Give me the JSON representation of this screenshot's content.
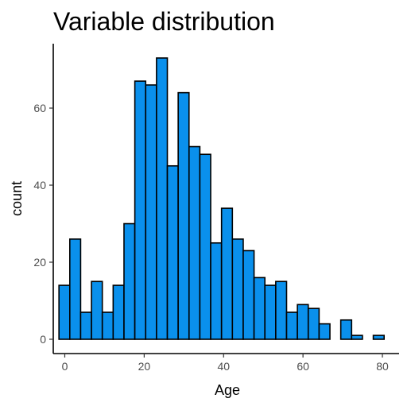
{
  "chart_data": {
    "type": "bar",
    "title": "Variable distribution",
    "xlabel": "Age",
    "ylabel": "count",
    "bin_width": 2.73,
    "x_centers": [
      -0.1,
      2.63,
      5.36,
      8.09,
      10.82,
      13.55,
      16.28,
      19.01,
      21.74,
      24.47,
      27.2,
      29.93,
      32.66,
      35.39,
      38.12,
      40.85,
      43.58,
      46.31,
      49.04,
      51.77,
      54.5,
      57.23,
      59.96,
      62.69,
      65.42,
      68.15,
      70.88,
      73.61,
      76.34,
      79.07,
      81.8
    ],
    "values": [
      14,
      26,
      7,
      15,
      7,
      14,
      30,
      67,
      66,
      73,
      45,
      64,
      50,
      48,
      25,
      34,
      26,
      23,
      16,
      14,
      15,
      7,
      9,
      8,
      4,
      0,
      5,
      1,
      0,
      1,
      0
    ],
    "xlim": [
      -2.9,
      84.2
    ],
    "ylim": [
      0,
      73
    ],
    "x_ticks": [
      0,
      20,
      40,
      60,
      80
    ],
    "y_ticks": [
      0,
      20,
      40,
      60
    ],
    "fill_color": "#0a90ec",
    "grid": false,
    "legend": "none"
  }
}
